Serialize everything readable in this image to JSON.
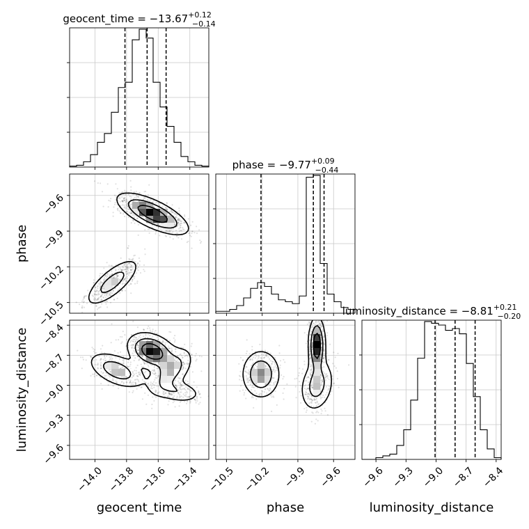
{
  "chart_data": {
    "type": "corner",
    "parameters": [
      "geocent_time",
      "phase",
      "luminosity_distance"
    ],
    "axis_labels": [
      "geocent_time",
      "phase",
      "luminosity_distance"
    ],
    "ranges": [
      [
        -14.16,
        -13.28
      ],
      [
        -10.59,
        -9.42
      ],
      [
        -9.74,
        -8.35
      ]
    ],
    "ticks": [
      {
        "values": [
          -14.0,
          -13.8,
          -13.6,
          -13.4
        ],
        "labels": [
          "−14.0",
          "−13.8",
          "−13.6",
          "−13.4"
        ]
      },
      {
        "values": [
          -10.5,
          -10.2,
          -9.9,
          -9.6
        ],
        "labels": [
          "−10.5",
          "−10.2",
          "−9.9",
          "−9.6"
        ]
      },
      {
        "values": [
          -9.6,
          -9.3,
          -9.0,
          -8.7,
          -8.4
        ],
        "labels": [
          "−9.6",
          "−9.3",
          "−9.0",
          "−8.7",
          "−8.4"
        ]
      }
    ],
    "titles": [
      {
        "name": "geocent_time",
        "eq": " = ",
        "median": "−13.67",
        "plus": "+0.12",
        "minus": "−0.14"
      },
      {
        "name": "phase",
        "eq": " = ",
        "median": "−9.77",
        "plus": "+0.09",
        "minus": "−0.44"
      },
      {
        "name": "luminosity_distance",
        "eq": " = ",
        "median": "−8.81",
        "plus": "+0.21",
        "minus": "−0.20"
      }
    ],
    "quantiles": [
      [
        -13.81,
        -13.67,
        -13.55
      ],
      [
        -10.21,
        -9.77,
        -9.68
      ],
      [
        -9.01,
        -8.81,
        -8.61
      ]
    ],
    "histograms": [
      {
        "edges_range": [
          -14.16,
          -13.28
        ],
        "counts": [
          0.5,
          1,
          3,
          7,
          14,
          19,
          31,
          45,
          48,
          72,
          78,
          73,
          48,
          34,
          23,
          14,
          6,
          3,
          1,
          0.5
        ]
      },
      {
        "edges_range": [
          -10.59,
          -9.42
        ],
        "counts": [
          1,
          1,
          2,
          4,
          8,
          13,
          16,
          14,
          10,
          7,
          6,
          5,
          9,
          71,
          72,
          26,
          10,
          6,
          3,
          2
        ]
      },
      {
        "edges_range": [
          -9.74,
          -8.35
        ],
        "counts": [
          0,
          0,
          1,
          2,
          3,
          8,
          17,
          34,
          58,
          79,
          78,
          77,
          74,
          75,
          72,
          55,
          36,
          17,
          6,
          1
        ]
      }
    ],
    "joint": [
      {
        "x": "geocent_time",
        "y": "phase",
        "blobs": [
          {
            "cx": -13.635,
            "cy": -9.755,
            "sx": 0.11,
            "sy": 0.085,
            "rho": -0.7,
            "w": 1.0
          },
          {
            "cx": -13.89,
            "cy": -10.33,
            "sx": 0.085,
            "sy": 0.1,
            "rho": 0.75,
            "w": 0.55
          }
        ]
      },
      {
        "x": "geocent_time",
        "y": "luminosity_distance",
        "blobs": [
          {
            "cx": -13.64,
            "cy": -8.66,
            "sx": 0.075,
            "sy": 0.09,
            "rho": -0.3,
            "w": 1.0
          },
          {
            "cx": -13.86,
            "cy": -8.85,
            "sx": 0.09,
            "sy": 0.09,
            "rho": -0.5,
            "w": 0.6
          },
          {
            "cx": -13.52,
            "cy": -8.86,
            "sx": 0.07,
            "sy": 0.12,
            "rho": 0.55,
            "w": 0.55
          },
          {
            "cx": -13.48,
            "cy": -9.06,
            "sx": 0.08,
            "sy": 0.06,
            "rho": -0.3,
            "w": 0.35
          }
        ]
      },
      {
        "x": "phase",
        "y": "luminosity_distance",
        "blobs": [
          {
            "cx": -10.21,
            "cy": -8.89,
            "sx": 0.08,
            "sy": 0.12,
            "rho": 0.0,
            "w": 0.7
          },
          {
            "cx": -9.74,
            "cy": -8.6,
            "sx": 0.035,
            "sy": 0.14,
            "rho": 0.0,
            "w": 1.0
          },
          {
            "cx": -9.74,
            "cy": -9.0,
            "sx": 0.07,
            "sy": 0.13,
            "rho": 0.2,
            "w": 0.55
          }
        ]
      }
    ],
    "grid": true
  }
}
